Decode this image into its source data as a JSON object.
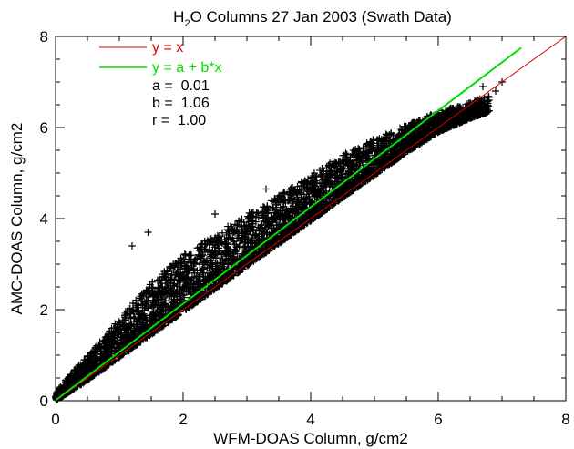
{
  "chart_data": {
    "type": "scatter",
    "title_main": "H",
    "title_sub": "2",
    "title_rest": "O Columns 27 Jan 2003 (Swath Data)",
    "xlabel": "WFM-DOAS Column, g/cm2",
    "ylabel": "AMC-DOAS Column, g/cm2",
    "xlim": [
      0,
      8
    ],
    "ylim": [
      0,
      8
    ],
    "xticks": [
      "0",
      "2",
      "4",
      "6",
      "8"
    ],
    "yticks": [
      "0",
      "2",
      "4",
      "6",
      "8"
    ],
    "marker": "+",
    "colors": {
      "points": "#000000",
      "identity": "#dd0000",
      "fit": "#00dd00"
    },
    "legend": {
      "identity_label": "y = x",
      "fit_label": "y = a + b*x",
      "stats": [
        "a =  0.01",
        "b =  1.06",
        "r =  1.00"
      ]
    },
    "series": [
      {
        "name": "y = x",
        "kind": "line",
        "x": [
          0,
          8
        ],
        "y": [
          0,
          8
        ]
      },
      {
        "name": "y = a + b*x",
        "kind": "line",
        "x": [
          0,
          7.3
        ],
        "y": [
          0.01,
          7.75
        ]
      }
    ],
    "point_envelope": {
      "x": [
        0.0,
        0.5,
        1.0,
        1.5,
        2.0,
        2.5,
        3.0,
        3.5,
        4.0,
        4.5,
        5.0,
        5.5,
        6.0,
        6.5,
        6.8
      ],
      "low": [
        0.0,
        0.45,
        0.95,
        1.45,
        1.95,
        2.45,
        2.95,
        3.45,
        3.95,
        4.45,
        4.95,
        5.45,
        5.9,
        6.2,
        6.35
      ],
      "high": [
        0.2,
        1.0,
        1.8,
        2.6,
        3.2,
        3.65,
        4.1,
        4.5,
        4.95,
        5.4,
        5.75,
        6.05,
        6.35,
        6.55,
        6.7
      ],
      "outliers": [
        [
          1.2,
          3.4
        ],
        [
          1.45,
          3.7
        ],
        [
          2.5,
          4.1
        ],
        [
          3.3,
          4.65
        ],
        [
          5.1,
          5.7
        ],
        [
          6.7,
          6.9
        ],
        [
          7.0,
          7.0
        ],
        [
          6.9,
          6.8
        ]
      ]
    }
  }
}
